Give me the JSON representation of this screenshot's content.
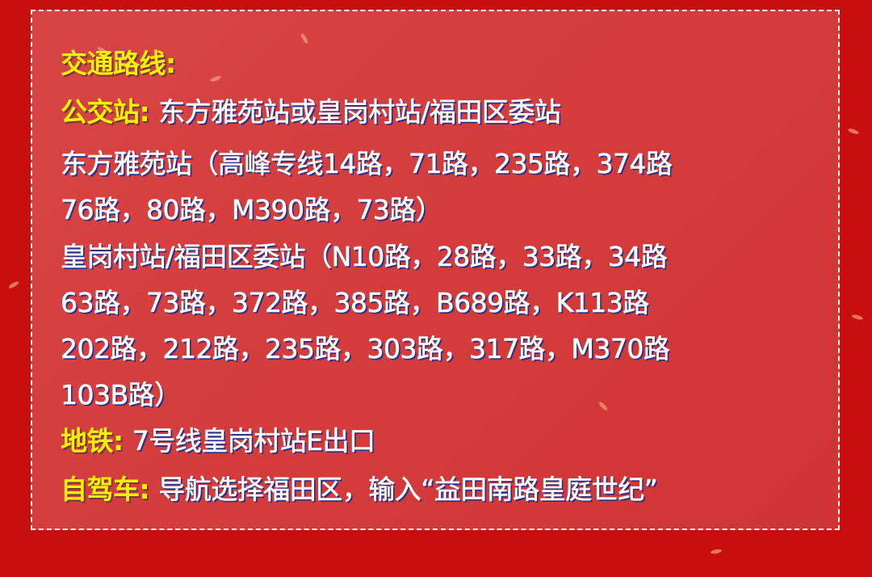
{
  "heading": "交通路线:",
  "bus": {
    "label": "公交站:",
    "value": "东方雅苑站或皇岗村站/福田区委站"
  },
  "bus_lines": [
    "东方雅苑站（高峰专线14路，71路，235路，374路",
    "76路，80路，M390路，73路）",
    "皇岗村站/福田区委站（N10路，28路，33路，34路",
    "63路，73路，372路，385路，B689路，K113路",
    "202路，212路，235路，303路，317路，M370路",
    "103B路）"
  ],
  "metro": {
    "label": "地铁:",
    "value": "7号线皇岗村站E出口"
  },
  "drive": {
    "label": "自驾车:",
    "value": "导航选择福田区，输入“益田南路皇庭世纪”"
  },
  "colors": {
    "background": "#c70f0e",
    "panel": "#d64040",
    "label": "#ffee00",
    "text": "#ffffff",
    "shadow": "#2a2f8a"
  }
}
